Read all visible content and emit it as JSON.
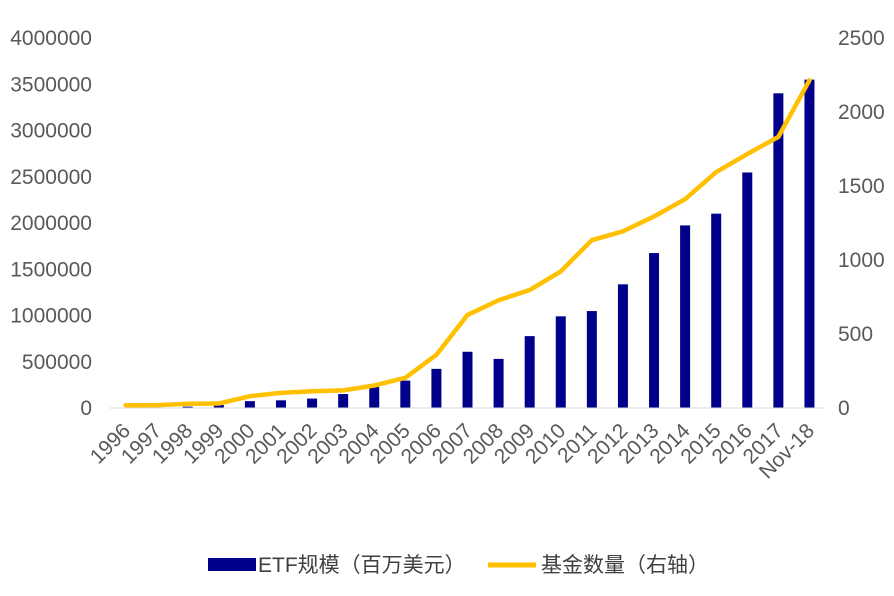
{
  "chart_data": {
    "type": "bar",
    "title": "",
    "categories": [
      "1996",
      "1997",
      "1998",
      "1999",
      "2000",
      "2001",
      "2002",
      "2003",
      "2004",
      "2005",
      "2006",
      "2007",
      "2008",
      "2009",
      "2010",
      "2011",
      "2012",
      "2013",
      "2014",
      "2015",
      "2016",
      "2017",
      "Nov-18"
    ],
    "series": [
      {
        "name": "ETF规模（百万美元）",
        "type": "bar",
        "axis": "left",
        "color": "#00008B",
        "values": [
          2000,
          7000,
          15000,
          34000,
          74000,
          83000,
          102000,
          151000,
          228000,
          296000,
          423000,
          608000,
          531000,
          777000,
          991000,
          1048000,
          1337000,
          1675000,
          1974000,
          2101000,
          2546000,
          3402000,
          3550000
        ]
      },
      {
        "name": "基金数量（右轴）",
        "type": "line",
        "axis": "right",
        "color": "#FFC000",
        "values": [
          19,
          19,
          29,
          30,
          80,
          102,
          113,
          119,
          152,
          204,
          359,
          629,
          728,
          797,
          923,
          1134,
          1194,
          1294,
          1411,
          1594,
          1716,
          1832,
          2214
        ]
      }
    ],
    "y_left": {
      "min": 0,
      "max": 4000000,
      "ticks": [
        "4000000",
        "3500000",
        "3000000",
        "2500000",
        "2000000",
        "1500000",
        "1000000",
        "500000",
        "0"
      ]
    },
    "y_right": {
      "min": 0,
      "max": 2500,
      "ticks": [
        "2500",
        "2000",
        "1500",
        "1000",
        "500",
        "0"
      ]
    },
    "grid": false,
    "legend_position": "bottom"
  }
}
